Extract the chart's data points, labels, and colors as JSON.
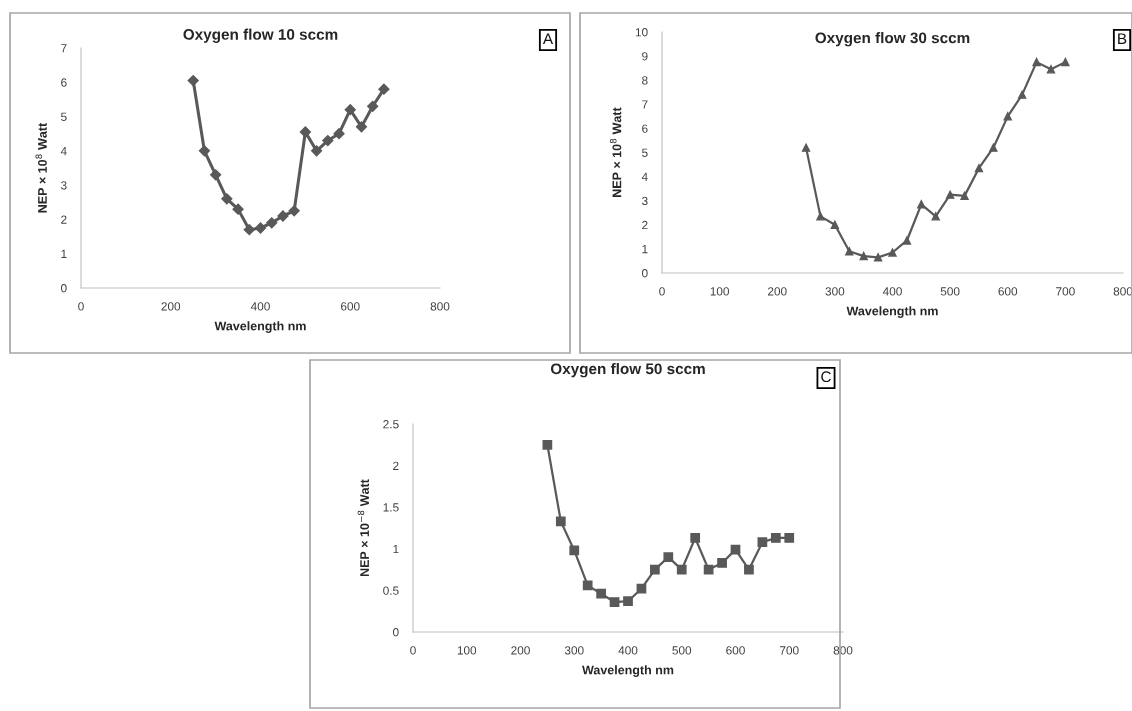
{
  "chart_data": [
    {
      "type": "line",
      "title": "Oxygen flow 10 sccm",
      "xlabel": "Wavelength nm",
      "ylabel": "NEP × 10$^{8}$ Watt",
      "annotations": [
        "A"
      ],
      "marker": "diamond",
      "grid": false,
      "legend": false,
      "x": [
        250,
        275,
        300,
        325,
        350,
        375,
        400,
        425,
        450,
        475,
        500,
        525,
        550,
        575,
        600,
        625,
        650,
        675
      ],
      "series": [
        {
          "color": "#595959",
          "values": [
            6.05,
            4.0,
            3.3,
            2.6,
            2.3,
            1.7,
            1.75,
            1.9,
            2.1,
            2.25,
            4.55,
            4.0,
            4.3,
            4.5,
            5.2,
            4.7,
            5.3,
            5.8
          ]
        }
      ],
      "xlim": [
        0,
        800
      ],
      "xticks": [
        0,
        200,
        400,
        600,
        800
      ],
      "ylim": [
        0,
        7
      ],
      "yticks": [
        0,
        1,
        2,
        3,
        4,
        5,
        6,
        7
      ]
    },
    {
      "type": "line",
      "title": "Oxygen flow 30 sccm",
      "xlabel": "Wavelength nm",
      "ylabel": "NEP × 10$^{8}$ Watt",
      "annotations": [
        "B"
      ],
      "marker": "triangle",
      "grid": false,
      "legend": false,
      "x": [
        250,
        275,
        300,
        325,
        350,
        375,
        400,
        425,
        450,
        475,
        500,
        525,
        550,
        575,
        600,
        625,
        650,
        675,
        700
      ],
      "series": [
        {
          "color": "#595959",
          "values": [
            5.2,
            2.35,
            2.0,
            0.9,
            0.7,
            0.65,
            0.85,
            1.35,
            2.85,
            2.35,
            3.25,
            3.2,
            4.35,
            5.2,
            6.5,
            7.4,
            8.75,
            8.45,
            8.75
          ]
        }
      ],
      "xlim": [
        0,
        800
      ],
      "xticks": [
        0,
        100,
        200,
        300,
        400,
        500,
        600,
        700,
        800
      ],
      "ylim": [
        0,
        10
      ],
      "yticks": [
        0,
        1,
        2,
        3,
        4,
        5,
        6,
        7,
        8,
        9,
        10
      ]
    },
    {
      "type": "line",
      "title": "Oxygen flow 50 sccm",
      "xlabel": "Wavelength nm",
      "ylabel": "NEP × 10$^{−8}$ Watt",
      "annotations": [
        "C"
      ],
      "marker": "square",
      "grid": false,
      "legend": false,
      "x": [
        250,
        275,
        300,
        325,
        350,
        375,
        400,
        425,
        450,
        475,
        500,
        525,
        550,
        575,
        600,
        625,
        650,
        675,
        700
      ],
      "series": [
        {
          "color": "#595959",
          "values": [
            2.25,
            1.33,
            0.98,
            0.56,
            0.46,
            0.36,
            0.37,
            0.52,
            0.75,
            0.9,
            0.75,
            1.13,
            0.75,
            0.83,
            0.99,
            0.75,
            1.08,
            1.13,
            1.13
          ]
        }
      ],
      "xlim": [
        0,
        800
      ],
      "xticks": [
        0,
        100,
        200,
        300,
        400,
        500,
        600,
        700,
        800
      ],
      "ylim": [
        0,
        2.5
      ],
      "yticks": [
        0,
        0.5,
        1,
        1.5,
        2,
        2.5
      ]
    }
  ]
}
